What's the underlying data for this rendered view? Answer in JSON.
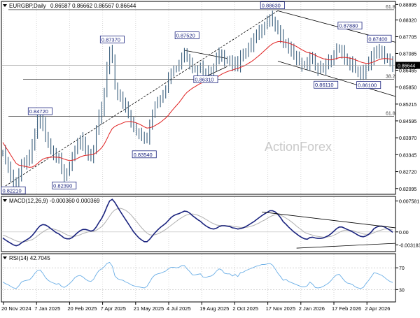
{
  "chart_data": {
    "type": "line",
    "title": "EURGBP,Daily",
    "ohlc_label": "0.86587 0.86662 0.86567 0.86644",
    "watermark": "ActionForex",
    "colors": {
      "price": "#3a5f7d",
      "sma": "#e02020",
      "macd": "#1a237e",
      "signal": "#b0b0b0",
      "rsi": "#6aaee6",
      "current_box": "#000000",
      "grid": "#d9d9d9"
    },
    "price_axis": {
      "ticks": [
        "0.88895",
        "0.88320",
        "0.87705",
        "0.87085",
        "0.86465",
        "0.85850",
        "0.85215",
        "0.84595",
        "0.83970",
        "0.83345",
        "0.82720",
        "0.82095"
      ],
      "ylim": [
        0.8196,
        0.8893
      ]
    },
    "x_labels": [
      "20 Nov 2024",
      "7 Jan 2025",
      "20 Feb 2025",
      "7 Apr 2025",
      "21 May 2025",
      "4 Jul 2025",
      "19 Aug 2025",
      "2 Oct 2025",
      "17 Nov 2025",
      "2 Jan 2026",
      "17 Feb 2026",
      "2 Apr 2026"
    ],
    "current_price": "0.86644",
    "fib_levels": [
      {
        "label": "61.8",
        "value": 0.887
      },
      {
        "label": "38.2",
        "value": 0.8613
      },
      {
        "label": "61.8",
        "value": 0.8476
      }
    ],
    "annotations": [
      {
        "text": "0.82210",
        "x": 1,
        "y": 0.8221
      },
      {
        "text": "0.84720",
        "x": 14,
        "y": 0.8472
      },
      {
        "text": "0.82390",
        "x": 23,
        "y": 0.8239
      },
      {
        "text": "0.87370",
        "x": 41,
        "y": 0.8737
      },
      {
        "text": "0.83540",
        "x": 53,
        "y": 0.8354
      },
      {
        "text": "0.87520",
        "x": 69,
        "y": 0.8752
      },
      {
        "text": "0.86310",
        "x": 76,
        "y": 0.8631
      },
      {
        "text": "0.88630",
        "x": 101,
        "y": 0.8863
      },
      {
        "text": "0.86110",
        "x": 121,
        "y": 0.8611
      },
      {
        "text": "0.87880",
        "x": 130,
        "y": 0.8788
      },
      {
        "text": "0.86100",
        "x": 137,
        "y": 0.861
      },
      {
        "text": "0.87400",
        "x": 141,
        "y": 0.874
      }
    ],
    "price_series": [
      0.8342,
      0.8315,
      0.8288,
      0.8262,
      0.8232,
      0.8225,
      0.8262,
      0.8305,
      0.8308,
      0.8312,
      0.8324,
      0.8366,
      0.8418,
      0.8452,
      0.8466,
      0.8445,
      0.84,
      0.8372,
      0.8352,
      0.8334,
      0.8315,
      0.8319,
      0.8281,
      0.8262,
      0.8272,
      0.8292,
      0.8325,
      0.8358,
      0.8383,
      0.8388,
      0.8377,
      0.8354,
      0.8338,
      0.8332,
      0.8356,
      0.8422,
      0.8472,
      0.8502,
      0.8562,
      0.8652,
      0.8712,
      0.8686,
      0.8587,
      0.8552,
      0.8542,
      0.853,
      0.8511,
      0.8487,
      0.8462,
      0.8437,
      0.842,
      0.8408,
      0.8398,
      0.8388,
      0.8398,
      0.8437,
      0.8482,
      0.8517,
      0.8532,
      0.8541,
      0.856,
      0.8579,
      0.8613,
      0.8643,
      0.8652,
      0.8652,
      0.8663,
      0.8697,
      0.8711,
      0.869,
      0.8673,
      0.8649,
      0.8651,
      0.8655,
      0.8661,
      0.864,
      0.8633,
      0.8641,
      0.8646,
      0.8661,
      0.8687,
      0.8712,
      0.8706,
      0.8686,
      0.8683,
      0.8682,
      0.8668,
      0.868,
      0.8667,
      0.8692,
      0.87,
      0.8715,
      0.8728,
      0.8742,
      0.8758,
      0.8772,
      0.8785,
      0.8804,
      0.8815,
      0.8828,
      0.8838,
      0.8833,
      0.8818,
      0.8793,
      0.877,
      0.8739,
      0.8744,
      0.8728,
      0.8716,
      0.8704,
      0.8693,
      0.8682,
      0.8671,
      0.8671,
      0.8675,
      0.8695,
      0.8681,
      0.8656,
      0.865,
      0.8652,
      0.8658,
      0.8665,
      0.8676,
      0.869,
      0.8711,
      0.8721,
      0.8726,
      0.8711,
      0.8693,
      0.8677,
      0.8672,
      0.8665,
      0.865,
      0.864,
      0.8636,
      0.864,
      0.8655,
      0.8671,
      0.8691,
      0.8718,
      0.8718,
      0.8712,
      0.8708,
      0.8697,
      0.8684,
      0.8672,
      0.8664
    ],
    "sma_series": [
      0.838,
      0.8364,
      0.8349,
      0.8333,
      0.8317,
      0.8303,
      0.8296,
      0.8294,
      0.8292,
      0.829,
      0.8288,
      0.8289,
      0.8294,
      0.8302,
      0.8311,
      0.8318,
      0.8322,
      0.8324,
      0.8325,
      0.8326,
      0.8325,
      0.8325,
      0.8322,
      0.8318,
      0.8315,
      0.8313,
      0.8314,
      0.8316,
      0.8321,
      0.8326,
      0.833,
      0.8332,
      0.8333,
      0.8334,
      0.8336,
      0.8342,
      0.835,
      0.836,
      0.8374,
      0.8393,
      0.8414,
      0.8431,
      0.8439,
      0.8444,
      0.8448,
      0.8452,
      0.8456,
      0.8457,
      0.8457,
      0.8455,
      0.8452,
      0.8448,
      0.8443,
      0.8437,
      0.8433,
      0.8434,
      0.8437,
      0.8442,
      0.8448,
      0.8454,
      0.8462,
      0.847,
      0.848,
      0.8493,
      0.8505,
      0.8516,
      0.8527,
      0.854,
      0.8554,
      0.8565,
      0.8573,
      0.858,
      0.8586,
      0.8592,
      0.8598,
      0.8601,
      0.8604,
      0.8607,
      0.861,
      0.8614,
      0.8619,
      0.8626,
      0.8632,
      0.8637,
      0.8641,
      0.8645,
      0.8647,
      0.8651,
      0.8653,
      0.8657,
      0.8661,
      0.8666,
      0.8672,
      0.8678,
      0.8685,
      0.8693,
      0.8701,
      0.871,
      0.8719,
      0.8728,
      0.8737,
      0.8744,
      0.8749,
      0.8752,
      0.8753,
      0.8751,
      0.875,
      0.8747,
      0.8743,
      0.8739,
      0.8734,
      0.8728,
      0.8722,
      0.8717,
      0.8712,
      0.871,
      0.8707,
      0.8702,
      0.8697,
      0.8693,
      0.8689,
      0.8687,
      0.8685,
      0.8685,
      0.8687,
      0.869,
      0.8693,
      0.8694,
      0.8694,
      0.8693,
      0.8691,
      0.8689,
      0.8685,
      0.8681,
      0.8677,
      0.8674,
      0.8672,
      0.8672,
      0.8674,
      0.8678,
      0.8682,
      0.8686,
      0.8688,
      0.869,
      0.8689,
      0.8688,
      0.8687
    ],
    "macd_panel": {
      "label": "MACD(12,26,9) -0.000360 0.000369",
      "ticks": [
        "0.007581",
        "0.00",
        "-0.003183"
      ],
      "ylim": [
        -0.0045,
        0.0082
      ],
      "macd_series": [
        -0.0015,
        -0.002,
        -0.0024,
        -0.0028,
        -0.0032,
        -0.0034,
        -0.0032,
        -0.0027,
        -0.0023,
        -0.0019,
        -0.0015,
        -0.0009,
        -0.0001,
        0.0008,
        0.0015,
        0.0018,
        0.0017,
        0.0013,
        0.0008,
        0.0003,
        -0.0002,
        -0.0005,
        -0.001,
        -0.0015,
        -0.0017,
        -0.0017,
        -0.0014,
        -0.0008,
        -0.0002,
        0.0003,
        0.0006,
        0.0006,
        0.0004,
        0.0002,
        0.0004,
        0.0012,
        0.0023,
        0.0033,
        0.0046,
        0.0062,
        0.0076,
        0.008,
        0.0072,
        0.0061,
        0.005,
        0.004,
        0.003,
        0.002,
        0.001,
        0.0,
        -0.0008,
        -0.0015,
        -0.002,
        -0.0024,
        -0.0024,
        -0.0018,
        -0.001,
        -0.0002,
        0.0005,
        0.0011,
        0.0016,
        0.0021,
        0.0028,
        0.0035,
        0.004,
        0.0043,
        0.0045,
        0.0048,
        0.0051,
        0.005,
        0.0046,
        0.004,
        0.0035,
        0.003,
        0.0026,
        0.002,
        0.0015,
        0.0011,
        0.0008,
        0.0007,
        0.0009,
        0.0013,
        0.0015,
        0.0015,
        0.0014,
        0.0013,
        0.001,
        0.0009,
        0.0007,
        0.0008,
        0.001,
        0.0013,
        0.0017,
        0.0021,
        0.0025,
        0.003,
        0.0035,
        0.004,
        0.0044,
        0.0048,
        0.0052,
        0.0052,
        0.0049,
        0.0043,
        0.0035,
        0.0025,
        0.0019,
        0.0012,
        0.0006,
        0.0,
        -0.0005,
        -0.001,
        -0.0014,
        -0.0017,
        -0.0018,
        -0.0014,
        -0.0013,
        -0.0015,
        -0.0016,
        -0.0016,
        -0.0015,
        -0.0012,
        -0.0009,
        -0.0004,
        0.0002,
        0.0008,
        0.0012,
        0.0012,
        0.0009,
        0.0006,
        0.0003,
        0.0,
        -0.0004,
        -0.0008,
        -0.0011,
        -0.0012,
        -0.001,
        -0.0006,
        0.0,
        0.0008,
        0.0012,
        0.0014,
        0.0014,
        0.0012,
        0.0008,
        0.0004,
        -0.0001
      ],
      "signal_series": [
        -0.0008,
        -0.001,
        -0.0013,
        -0.0016,
        -0.0019,
        -0.0022,
        -0.0024,
        -0.0025,
        -0.0024,
        -0.0023,
        -0.0021,
        -0.0019,
        -0.0015,
        -0.001,
        -0.0005,
        0.0,
        0.0004,
        0.0007,
        0.0008,
        0.0007,
        0.0005,
        0.0003,
        0.0,
        -0.0004,
        -0.0007,
        -0.001,
        -0.0011,
        -0.0011,
        -0.0009,
        -0.0007,
        -0.0004,
        -0.0002,
        0.0,
        0.0001,
        0.0001,
        0.0004,
        0.0008,
        0.0013,
        0.002,
        0.0029,
        0.0039,
        0.0048,
        0.0054,
        0.0057,
        0.0058,
        0.0056,
        0.0053,
        0.0048,
        0.0042,
        0.0034,
        0.0026,
        0.0018,
        0.001,
        0.0003,
        -0.0003,
        -0.0007,
        -0.0008,
        -0.0007,
        -0.0005,
        -0.0002,
        0.0002,
        0.0006,
        0.0011,
        0.0016,
        0.0021,
        0.0026,
        0.0031,
        0.0035,
        0.0039,
        0.0042,
        0.0044,
        0.0044,
        0.0043,
        0.0041,
        0.0038,
        0.0035,
        0.0031,
        0.0027,
        0.0023,
        0.002,
        0.0017,
        0.0016,
        0.0016,
        0.0016,
        0.0015,
        0.0015,
        0.0014,
        0.0013,
        0.0012,
        0.0011,
        0.0011,
        0.0011,
        0.0012,
        0.0014,
        0.0016,
        0.0019,
        0.0022,
        0.0026,
        0.0029,
        0.0033,
        0.0037,
        0.004,
        0.0042,
        0.0042,
        0.0041,
        0.0038,
        0.0034,
        0.003,
        0.0025,
        0.002,
        0.0014,
        0.0009,
        0.0004,
        -0.0001,
        -0.0004,
        -0.0006,
        -0.0008,
        -0.001,
        -0.0011,
        -0.0012,
        -0.0013,
        -0.0013,
        -0.0012,
        -0.0011,
        -0.0008,
        -0.0005,
        -0.0001,
        0.0002,
        0.0004,
        0.0004,
        0.0004,
        0.0003,
        0.0001,
        -0.0001,
        -0.0003,
        -0.0005,
        -0.0006,
        -0.0006,
        -0.0005,
        -0.0002,
        0.0001,
        0.0003,
        0.0005,
        0.0007,
        0.0007,
        0.0006,
        0.0005
      ]
    },
    "rsi_panel": {
      "label": "RSI(14) 42.7045",
      "ticks": [
        "70",
        "30"
      ],
      "ylim": [
        10,
        92
      ],
      "rsi_series": [
        44,
        41,
        39,
        36,
        33,
        32,
        37,
        44,
        46,
        47,
        48,
        53,
        60,
        65,
        66,
        60,
        52,
        47,
        44,
        42,
        40,
        41,
        36,
        34,
        37,
        41,
        46,
        52,
        55,
        56,
        53,
        49,
        46,
        45,
        49,
        58,
        65,
        68,
        72,
        78,
        80,
        73,
        55,
        50,
        48,
        47,
        44,
        42,
        39,
        37,
        36,
        35,
        34,
        33,
        36,
        44,
        52,
        57,
        59,
        60,
        62,
        64,
        68,
        71,
        71,
        70,
        71,
        74,
        74,
        68,
        63,
        57,
        57,
        58,
        59,
        53,
        52,
        54,
        55,
        58,
        64,
        68,
        66,
        60,
        59,
        59,
        55,
        58,
        54,
        61,
        62,
        65,
        67,
        69,
        71,
        73,
        74,
        76,
        76,
        77,
        78,
        75,
        68,
        60,
        54,
        47,
        49,
        45,
        43,
        41,
        39,
        37,
        35,
        35,
        37,
        44,
        40,
        34,
        33,
        34,
        36,
        39,
        42,
        47,
        53,
        57,
        58,
        52,
        46,
        42,
        41,
        39,
        35,
        33,
        32,
        34,
        41,
        47,
        54,
        61,
        60,
        58,
        56,
        52,
        48,
        45,
        43
      ]
    },
    "trend_lines": [
      {
        "style": "dashed",
        "from": [
          1,
          0.8219
        ],
        "to": [
          103,
          0.8866
        ]
      },
      {
        "style": "solid",
        "from": [
          68,
          0.872
        ],
        "to": [
          84,
          0.869
        ]
      },
      {
        "style": "solid",
        "from": [
          72,
          0.8605
        ],
        "to": [
          84,
          0.866
        ]
      },
      {
        "style": "solid",
        "from": [
          103,
          0.8866
        ],
        "to": [
          147,
          0.875
        ]
      },
      {
        "style": "solid",
        "from": [
          103,
          0.868
        ],
        "to": [
          147,
          0.855
        ]
      }
    ],
    "macd_lines": [
      {
        "from": [
          97,
          0.0049
        ],
        "to": [
          147,
          0.001
        ]
      },
      {
        "from": [
          110,
          -0.004
        ],
        "to": [
          147,
          -0.0028
        ]
      }
    ]
  }
}
